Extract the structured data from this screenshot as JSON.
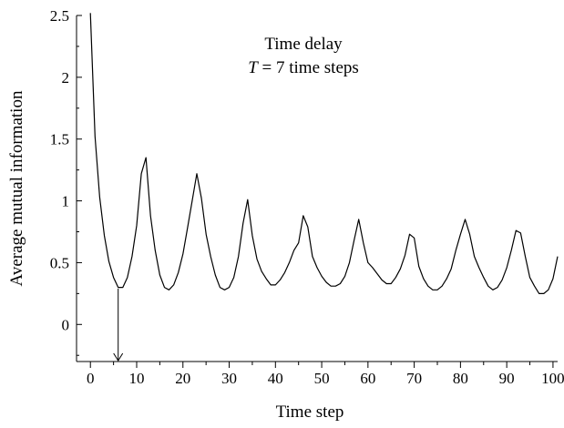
{
  "chart_data": {
    "type": "line",
    "xlabel": "Time step",
    "ylabel": "Average mutual information",
    "xlim": [
      -3,
      101
    ],
    "ylim": [
      -0.3,
      2.5
    ],
    "xticks": [
      0,
      10,
      20,
      30,
      40,
      50,
      60,
      70,
      80,
      90,
      100
    ],
    "xtick_labels": [
      "0",
      "10",
      "20",
      "30",
      "40",
      "50",
      "60",
      "70",
      "80",
      "90",
      "100"
    ],
    "yticks": [
      0,
      0.5,
      1,
      1.5,
      2,
      2.5
    ],
    "ytick_labels": [
      "0",
      "0.5",
      "1",
      "1.5",
      "2",
      "2.5"
    ],
    "annotation": {
      "line1": "Time delay",
      "line2_italic": "T",
      "line2_rest": " = 7 time steps"
    },
    "arrow": {
      "x": 6,
      "y_from": 0.29,
      "y_to": -0.3
    },
    "series": [
      {
        "x": [
          0,
          1,
          2,
          3,
          4,
          5,
          6,
          7,
          8,
          9,
          10,
          11,
          12,
          13,
          14,
          15,
          16,
          17,
          18,
          19,
          20,
          21,
          22,
          23,
          24,
          25,
          26,
          27,
          28,
          29,
          30,
          31,
          32,
          33,
          34,
          35,
          36,
          37,
          38,
          39,
          40,
          41,
          42,
          43,
          44,
          45,
          46,
          47,
          48,
          49,
          50,
          51,
          52,
          53,
          54,
          55,
          56,
          57,
          58,
          59,
          60,
          61,
          62,
          63,
          64,
          65,
          66,
          67,
          68,
          69,
          70,
          71,
          72,
          73,
          74,
          75,
          76,
          77,
          78,
          79,
          80,
          81,
          82,
          83,
          84,
          85,
          86,
          87,
          88,
          89,
          90,
          91,
          92,
          93,
          94,
          95,
          96,
          97,
          98,
          99,
          100,
          101
        ],
        "values": [
          2.52,
          1.52,
          1.03,
          0.72,
          0.51,
          0.38,
          0.3,
          0.3,
          0.38,
          0.55,
          0.8,
          1.22,
          1.35,
          0.88,
          0.6,
          0.4,
          0.3,
          0.28,
          0.32,
          0.42,
          0.57,
          0.78,
          1.0,
          1.22,
          1.02,
          0.73,
          0.55,
          0.4,
          0.3,
          0.28,
          0.3,
          0.38,
          0.55,
          0.82,
          1.01,
          0.72,
          0.53,
          0.43,
          0.37,
          0.32,
          0.32,
          0.36,
          0.42,
          0.5,
          0.6,
          0.66,
          0.88,
          0.79,
          0.55,
          0.46,
          0.39,
          0.34,
          0.31,
          0.31,
          0.33,
          0.39,
          0.5,
          0.68,
          0.85,
          0.66,
          0.5,
          0.46,
          0.41,
          0.36,
          0.33,
          0.33,
          0.38,
          0.45,
          0.56,
          0.73,
          0.7,
          0.47,
          0.37,
          0.31,
          0.28,
          0.28,
          0.31,
          0.37,
          0.45,
          0.6,
          0.73,
          0.85,
          0.73,
          0.55,
          0.46,
          0.38,
          0.31,
          0.28,
          0.3,
          0.36,
          0.46,
          0.6,
          0.76,
          0.74,
          0.55,
          0.38,
          0.31,
          0.25,
          0.25,
          0.28,
          0.37,
          0.55
        ]
      }
    ]
  }
}
